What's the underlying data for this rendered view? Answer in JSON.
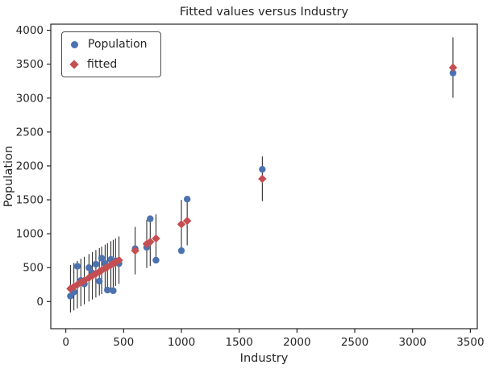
{
  "figure": {
    "background": "#ffffff",
    "frame_color": "#262626",
    "errorbar_color": "#1a1a1a"
  },
  "chart_data": {
    "type": "scatter",
    "title": "Fitted values versus Industry",
    "xlabel": "Industry",
    "ylabel": "Population",
    "xlim": [
      -130,
      3560
    ],
    "ylim": [
      -400,
      4090
    ],
    "xticks": [
      0,
      500,
      1000,
      1500,
      2000,
      2500,
      3000,
      3500
    ],
    "yticks": [
      0,
      500,
      1000,
      1500,
      2000,
      2500,
      3000,
      3500,
      4000
    ],
    "grid": false,
    "legend": {
      "position": "upper-left",
      "entries": [
        {
          "label": "Population",
          "marker": "circle",
          "color": "#4C72B0"
        },
        {
          "label": "fitted",
          "marker": "diamond",
          "color": "#C44E52"
        }
      ]
    },
    "x": [
      40,
      70,
      100,
      130,
      160,
      200,
      230,
      260,
      290,
      310,
      340,
      360,
      390,
      410,
      430,
      460,
      600,
      700,
      730,
      780,
      1000,
      1050,
      1700,
      3350
    ],
    "series": [
      {
        "name": "Population",
        "marker": "circle",
        "color": "#4C72B0",
        "values": [
          80,
          140,
          520,
          310,
          260,
          500,
          420,
          550,
          300,
          640,
          560,
          170,
          620,
          160,
          600,
          560,
          780,
          800,
          1220,
          610,
          750,
          1510,
          1950,
          3370
        ]
      },
      {
        "name": "fitted",
        "marker": "diamond",
        "color": "#C44E52",
        "values": [
          190,
          220,
          250,
          280,
          310,
          350,
          380,
          410,
          440,
          460,
          490,
          510,
          540,
          560,
          580,
          610,
          750,
          850,
          880,
          930,
          1140,
          1190,
          1810,
          3450
        ],
        "yerr": [
          350,
          350,
          350,
          350,
          350,
          350,
          350,
          350,
          350,
          350,
          350,
          350,
          350,
          350,
          350,
          350,
          350,
          355,
          355,
          355,
          360,
          360,
          330,
          445
        ]
      }
    ]
  }
}
